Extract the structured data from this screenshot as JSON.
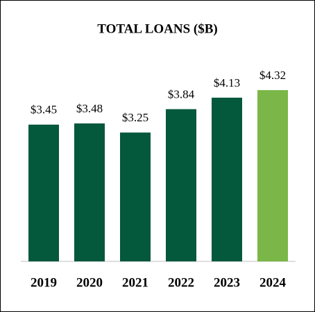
{
  "chart_data": {
    "type": "bar",
    "title": "TOTAL LOANS ($B)",
    "categories": [
      "2019",
      "2020",
      "2021",
      "2022",
      "2023",
      "2024"
    ],
    "values": [
      3.45,
      3.48,
      3.25,
      3.84,
      4.13,
      4.32
    ],
    "value_labels": [
      "$3.45",
      "$3.48",
      "$3.25",
      "$3.84",
      "$4.13",
      "$4.32"
    ],
    "colors": [
      "#04583b",
      "#04583b",
      "#04583b",
      "#04583b",
      "#04583b",
      "#7ab648"
    ]
  }
}
